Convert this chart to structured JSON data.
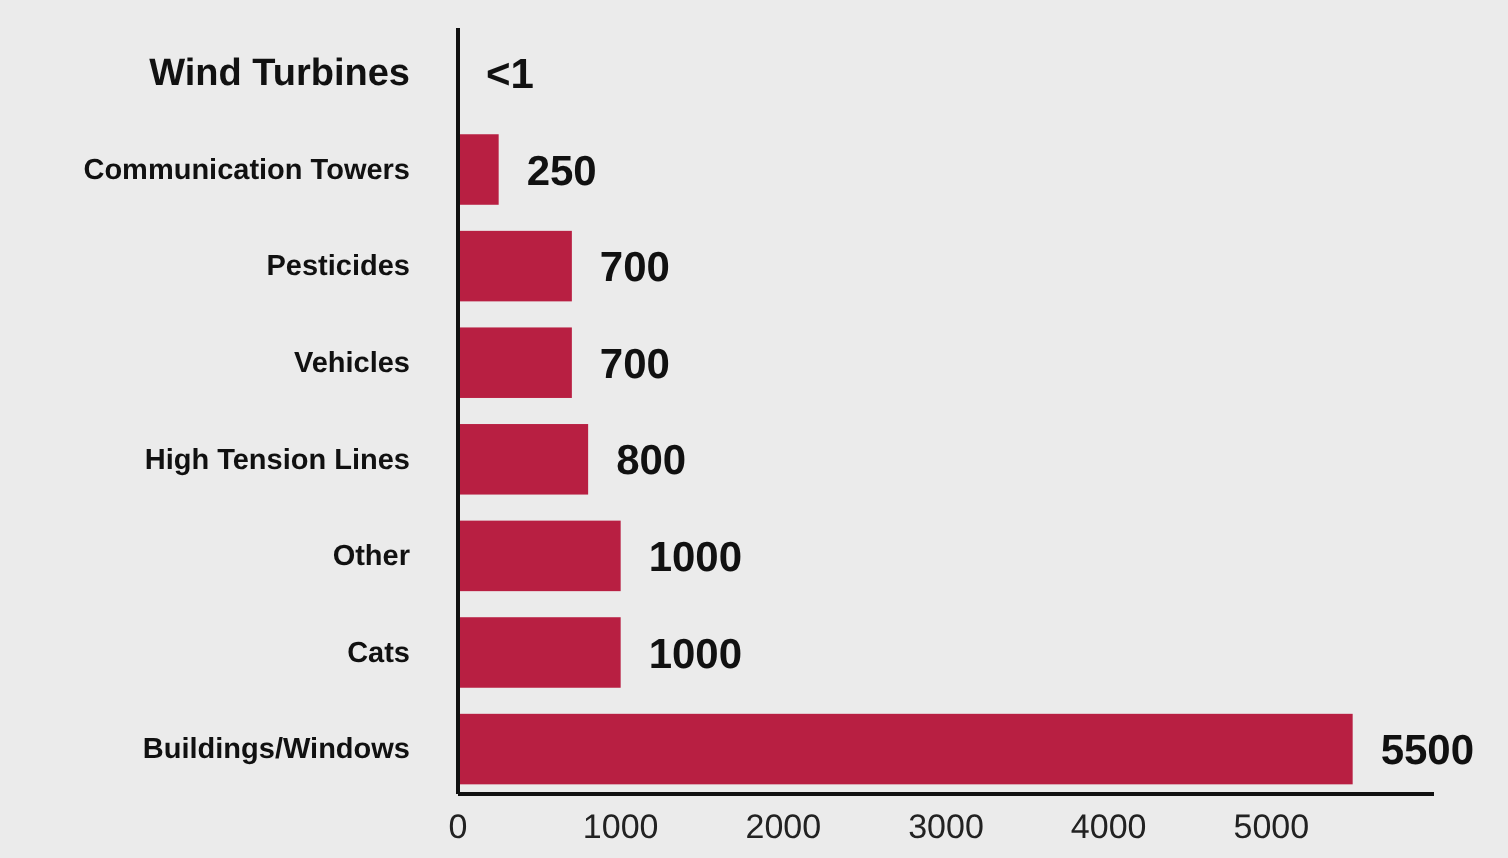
{
  "chart_data": {
    "type": "bar",
    "orientation": "horizontal",
    "categories": [
      "Wind Turbines",
      "Communication Towers",
      "Pesticides",
      "Vehicles",
      "High Tension Lines",
      "Other",
      "Cats",
      "Buildings/Windows"
    ],
    "values": [
      0.5,
      250,
      700,
      700,
      800,
      1000,
      1000,
      5500
    ],
    "value_labels": [
      "<1",
      "250",
      "700",
      "700",
      "800",
      "1000",
      "1000",
      "5500"
    ],
    "color": "#b81f42",
    "xlim": [
      0,
      6000
    ],
    "xticks": [
      0,
      1000,
      2000,
      3000,
      4000,
      5000
    ],
    "grid": false
  }
}
